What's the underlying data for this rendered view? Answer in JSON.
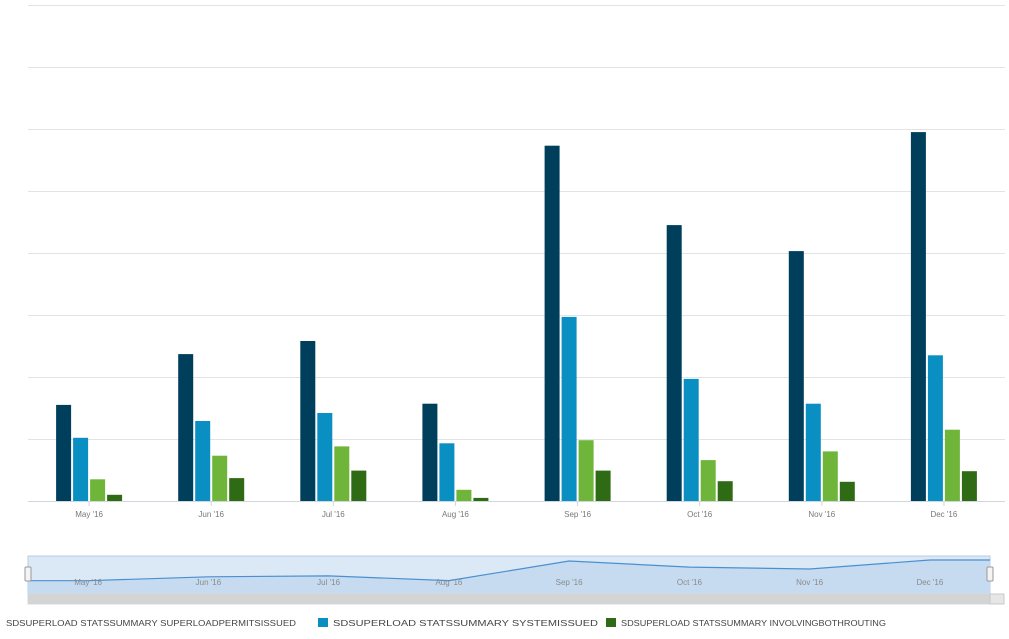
{
  "chart_data": {
    "type": "bar",
    "title": "",
    "xlabel": "",
    "ylabel": "",
    "categories": [
      "May '16",
      "Jun '16",
      "Jul '16",
      "Aug '16",
      "Sep '16",
      "Oct '16",
      "Nov '16",
      "Dec '16"
    ],
    "ylim": [
      0,
      8
    ],
    "grid": true,
    "legend": "bottom",
    "series": [
      {
        "name": "SDSUPERLOAD STATSSUMMARY SUPERLOADPERMITSISSUED",
        "color": "#003f5c",
        "values": [
          1.55,
          2.37,
          2.58,
          1.57,
          5.73,
          4.45,
          4.03,
          5.95
        ]
      },
      {
        "name": "SDSUPERLOAD STATSSUMMARY SYSTEMISSUED",
        "color": "#0a8fc2",
        "values": [
          1.02,
          1.29,
          1.42,
          0.93,
          2.97,
          1.97,
          1.57,
          2.35
        ]
      },
      {
        "name": "SDSUPERLOAD STATSSUMMARY INVOLVINGBOTHROUTING",
        "color": "#6fb53a",
        "values": [
          0.35,
          0.73,
          0.88,
          0.18,
          0.98,
          0.66,
          0.8,
          1.15
        ]
      },
      {
        "name": "",
        "color": "#2f6b14",
        "values": [
          0.1,
          0.37,
          0.49,
          0.05,
          0.49,
          0.32,
          0.31,
          0.48
        ]
      }
    ],
    "navigator": {
      "labels": [
        "May '16",
        "Jun '16",
        "Jul '16",
        "Aug '16",
        "Sep '16",
        "Oct '16",
        "Nov '16",
        "Dec '16"
      ]
    },
    "legend_items": [
      {
        "label": "SDSUPERLOAD STATSSUMMARY SUPERLOADPERMITSISSUED",
        "color": "#003f5c"
      },
      {
        "label": "SDSUPERLOAD STATSSUMMARY SYSTEMISSUED",
        "color": "#0a8fc2"
      },
      {
        "label": "SDSUPERLOAD STATSSUMMARY INVOLVINGBOTHROUTING",
        "color": "#2f6b14"
      }
    ]
  }
}
